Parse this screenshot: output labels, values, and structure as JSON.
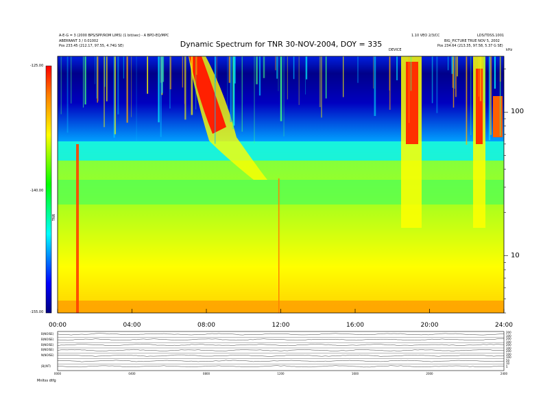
{
  "header": {
    "title": "Dynamic Spectrum for TNR 30-NOV-2004, DOY = 335",
    "left_line1": "A-E-G = 3 (2000 BPS/SPP/ROM LIMS) (1 bit/sec) - A BPD-EQ/MPC",
    "left_line2": "ABERRANT 3 / 0.01002",
    "left_line3": "Pos    233.45 (212.17, 97.55, 4.74G SE)",
    "right_line1a": "1.10 VEO 2/3/CC",
    "right_line1b": "LDS/TDSS.1001",
    "right_line2": "BIG_PICTURE  TRUE   NOV 5, 2002",
    "right_line3": "Pos    234.64 (213.35, 97.58, 5.37 G SE)",
    "sub_note": "DEVICE",
    "unit_label": "kHz"
  },
  "colorbar": {
    "top_label": "-125.00",
    "mid_label": "-140.00",
    "bottom_label": "-155.00",
    "axis_title": "TNR"
  },
  "chart_data": {
    "type": "heatmap",
    "title": "Dynamic Spectrum for TNR 30-NOV-2004, DOY = 335",
    "x_ticks": [
      "00:00",
      "04:00",
      "08:00",
      "12:00",
      "16:00",
      "20:00",
      "24:00"
    ],
    "x_range_hours": [
      0,
      24
    ],
    "y_scale": "log",
    "y_unit": "kHz",
    "y_ticks": [
      {
        "value": 100,
        "label": "100"
      },
      {
        "value": 10,
        "label": "10"
      }
    ],
    "y_range_khz": [
      4,
      245
    ],
    "color_scale": {
      "min": -155.0,
      "max": -125.0,
      "ticks": [
        -155.0,
        -140.0,
        -125.0
      ]
    },
    "features": [
      {
        "name": "drifting radio burst",
        "start_hour": 7.0,
        "end_hour": 10.5
      },
      {
        "name": "enhanced band",
        "start_hour": 18.5,
        "end_hour": 19.5
      },
      {
        "name": "enhanced band",
        "start_hour": 22.2,
        "end_hour": 22.8
      }
    ]
  },
  "lower_panel": {
    "channel_labels": [
      "B(NOISE)",
      "B(NOISE)",
      "B(NOISE)",
      "B(NOISE)",
      "N(NOISE)",
      "",
      "|B|(NT)"
    ],
    "right_labels": [
      "200",
      "100",
      "200",
      "100",
      "200",
      "100",
      "200",
      "100",
      "100",
      "50",
      "10",
      "5"
    ],
    "x_ticks": [
      "0000",
      "0400",
      "0800",
      "1200",
      "1600",
      "2000",
      "2400"
    ],
    "footer": "Mnltss    dtfg"
  }
}
